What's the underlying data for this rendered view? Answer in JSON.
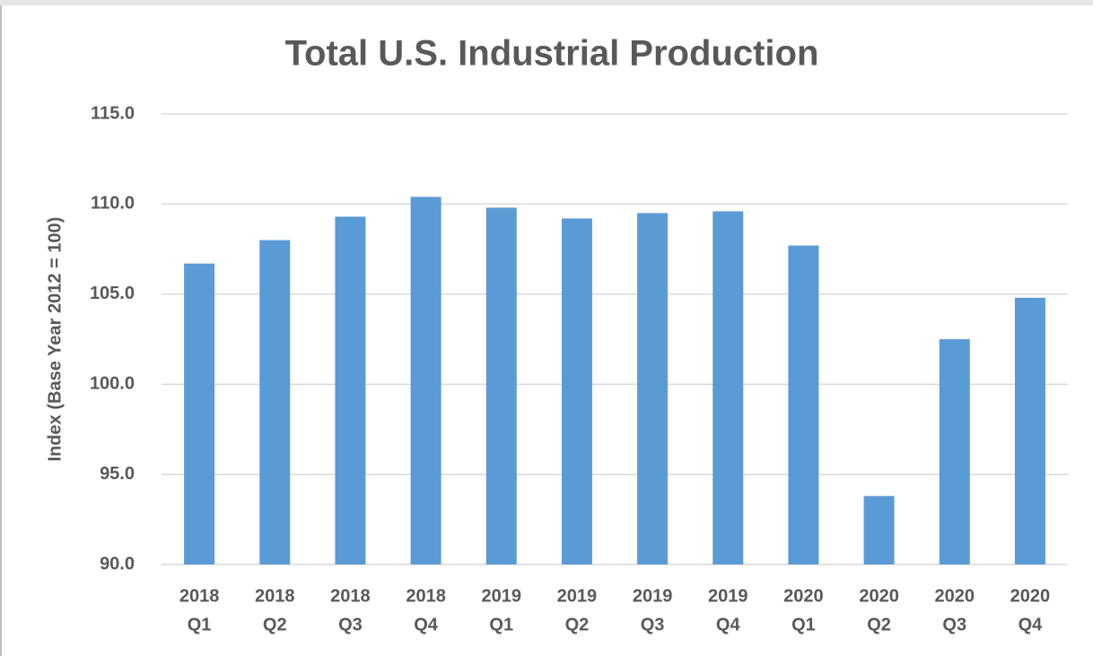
{
  "chart_data": {
    "type": "bar",
    "title": "Total U.S. Industrial Production",
    "y_label": "Index (Base Year 2012 = 100)",
    "categories": [
      [
        "2018",
        "Q1"
      ],
      [
        "2018",
        "Q2"
      ],
      [
        "2018",
        "Q3"
      ],
      [
        "2018",
        "Q4"
      ],
      [
        "2019",
        "Q1"
      ],
      [
        "2019",
        "Q2"
      ],
      [
        "2019",
        "Q3"
      ],
      [
        "2019",
        "Q4"
      ],
      [
        "2020",
        "Q1"
      ],
      [
        "2020",
        "Q2"
      ],
      [
        "2020",
        "Q3"
      ],
      [
        "2020",
        "Q4"
      ]
    ],
    "values": [
      106.7,
      108.0,
      109.3,
      110.4,
      109.8,
      109.2,
      109.5,
      109.6,
      107.7,
      93.8,
      102.5,
      104.8
    ],
    "color": "#5b9bd5",
    "ylim": [
      90,
      115
    ],
    "yticks": [
      {
        "value": 90,
        "label": "90.0"
      },
      {
        "value": 95,
        "label": "95.0"
      },
      {
        "value": 100,
        "label": "100.0"
      },
      {
        "value": 105,
        "label": "105.0"
      },
      {
        "value": 110,
        "label": "110.0"
      },
      {
        "value": 115,
        "label": "115.0"
      }
    ],
    "grid": true
  }
}
